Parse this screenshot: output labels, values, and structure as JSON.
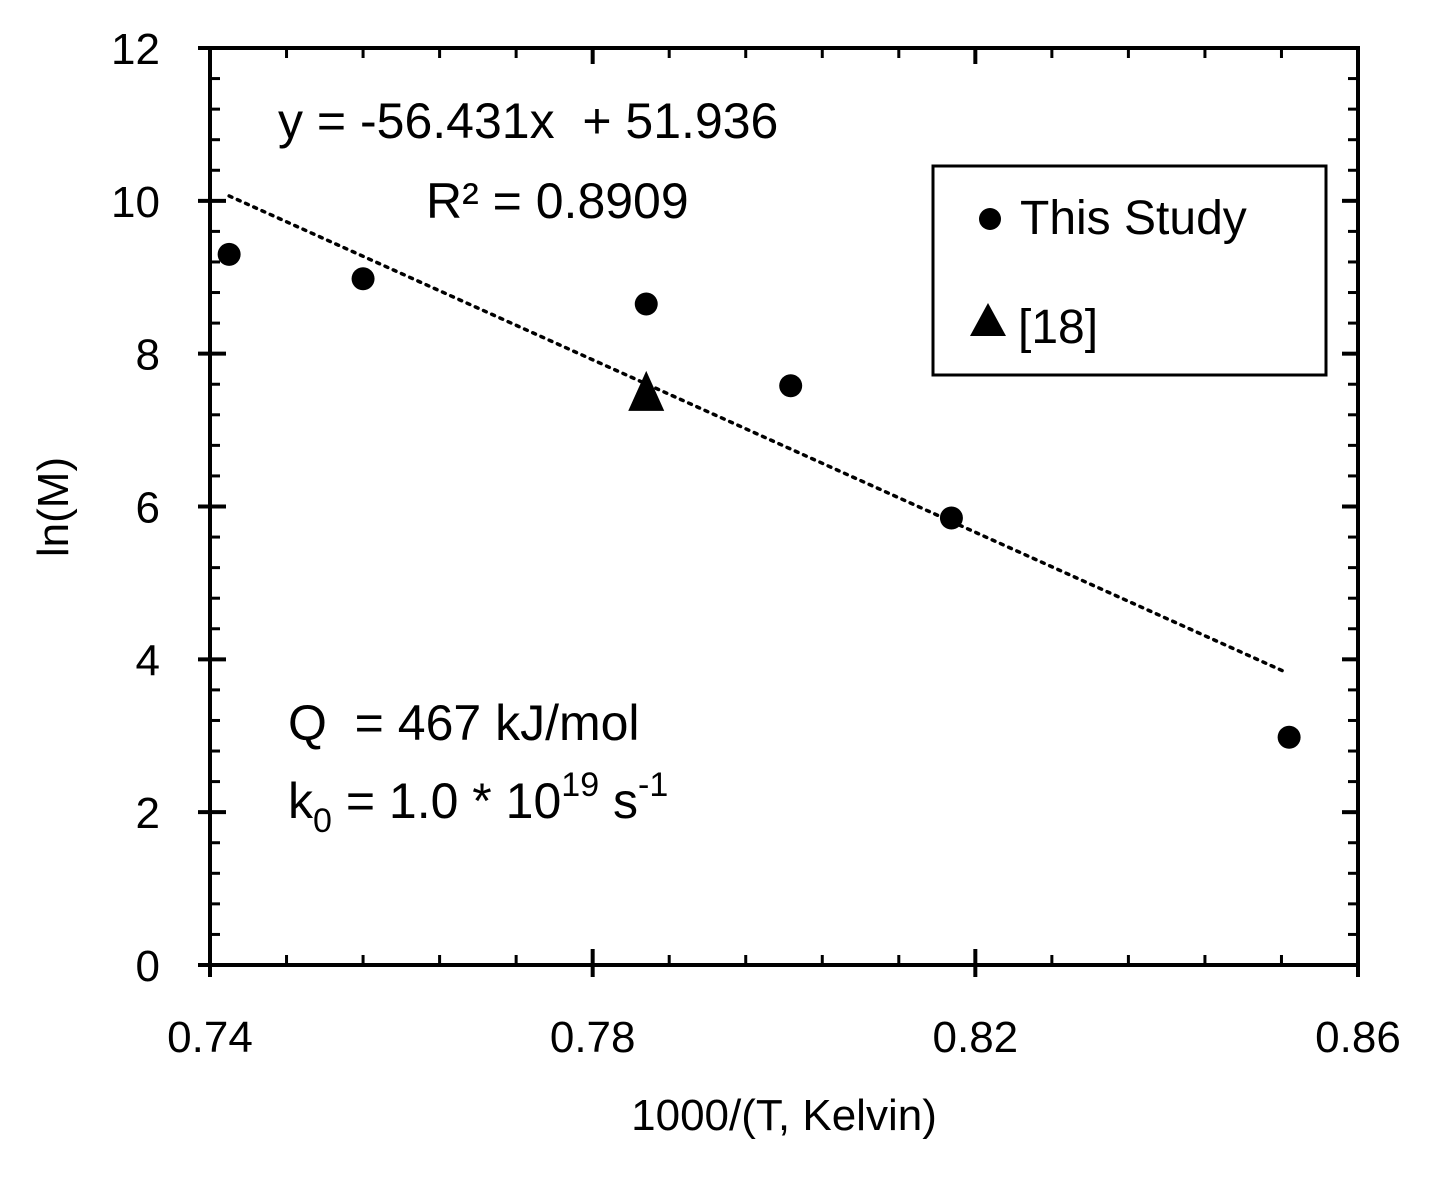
{
  "chart_data": {
    "type": "scatter",
    "xlabel": "1000/(T, Kelvin)",
    "ylabel": "ln(M)",
    "xlim": [
      0.74,
      0.86
    ],
    "ylim": [
      0,
      12
    ],
    "x_major_ticks": [
      0.74,
      0.78,
      0.82,
      0.86
    ],
    "x_tick_labels": [
      "0.74",
      "0.78",
      "0.82",
      "0.86"
    ],
    "x_minor_step": 0.008,
    "y_major_ticks": [
      0,
      2,
      4,
      6,
      8,
      10,
      12
    ],
    "y_tick_labels": [
      "0",
      "2",
      "4",
      "6",
      "8",
      "10",
      "12"
    ],
    "y_minor_step": 0.4,
    "grid": false,
    "series": [
      {
        "name": "This Study",
        "marker": "circle",
        "color": "#000000",
        "points": [
          {
            "x": 0.742,
            "y": 9.3
          },
          {
            "x": 0.756,
            "y": 8.98
          },
          {
            "x": 0.7856,
            "y": 8.65
          },
          {
            "x": 0.8007,
            "y": 7.58
          },
          {
            "x": 0.8175,
            "y": 5.85
          },
          {
            "x": 0.8528,
            "y": 2.98
          }
        ]
      },
      {
        "name": "[18]",
        "marker": "triangle",
        "color": "#000000",
        "points": [
          {
            "x": 0.7856,
            "y": 7.5
          }
        ]
      }
    ],
    "trendline": {
      "style": "dotted",
      "slope": -56.431,
      "intercept": 51.936,
      "x_range": [
        0.742,
        0.8523
      ],
      "equation": "y = -56.431x  + 51.936",
      "r_squared": "R² = 0.8909"
    },
    "annotations": {
      "q_text": "Q  = 467 kJ/mol",
      "k_main": "k",
      "k_sub": "0",
      "k_mid": " = 1.0 * 10",
      "k_exp": "19",
      "k_unit": " s",
      "k_unit_exp": "-1"
    },
    "legend": {
      "position": "top-right",
      "entries": [
        "This Study",
        "[18]"
      ]
    }
  }
}
